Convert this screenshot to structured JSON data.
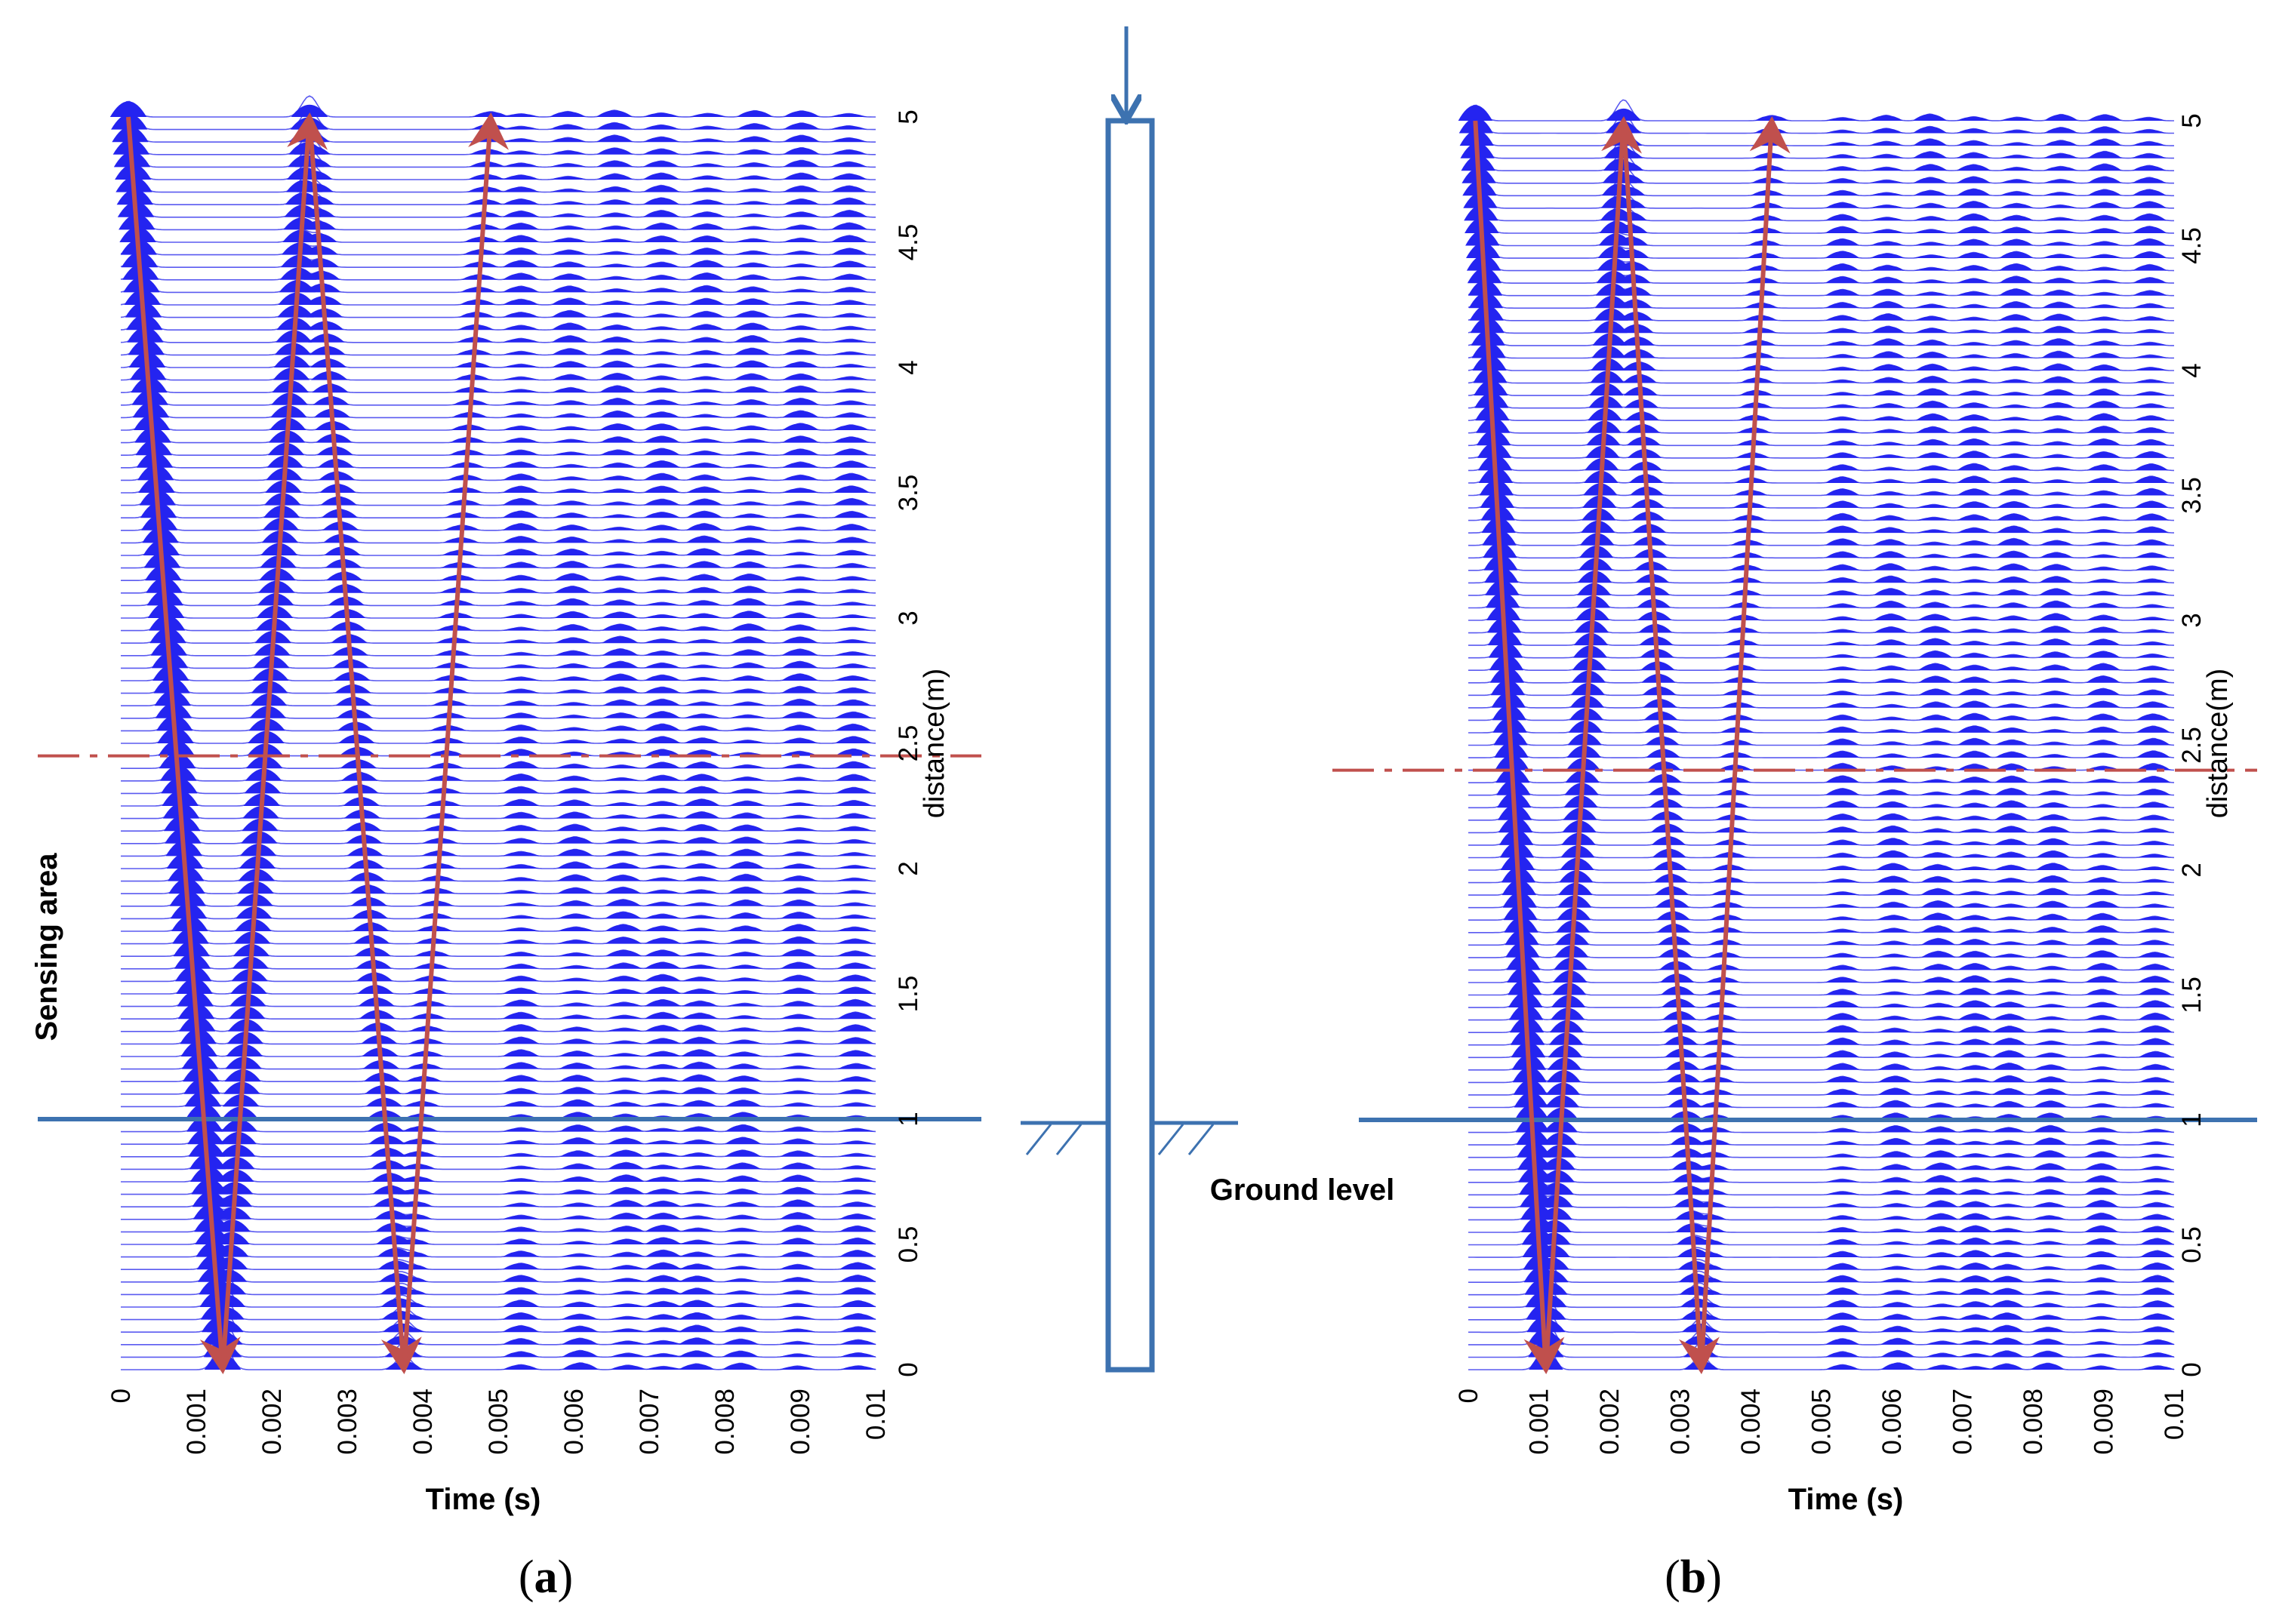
{
  "chart_data": [
    {
      "type": "line",
      "panel": "a",
      "panel_label": "a",
      "title": "",
      "xlabel": "Time (s)",
      "ylabel": "distance(m)",
      "xlim": [
        0,
        0.01
      ],
      "ylim": [
        0,
        5
      ],
      "x_ticks": [
        "0",
        "0.001",
        "0.002",
        "0.003",
        "0.004",
        "0.005",
        "0.006",
        "0.007",
        "0.008",
        "0.009",
        "0.01"
      ],
      "y_ticks": [
        "0",
        "0.5",
        "1",
        "1.5",
        "2",
        "2.5",
        "3",
        "3.5",
        "4",
        "4.5",
        "5"
      ],
      "series_description": "wiggle traces, one per 0.05 m of distance",
      "ground_level_m": 1.0,
      "interface_m": 2.45,
      "wave_path": [
        [
          0.0001,
          5.0
        ],
        [
          0.00135,
          0.0
        ],
        [
          0.0025,
          5.0
        ],
        [
          0.00375,
          0.0
        ],
        [
          0.0049,
          5.0
        ]
      ],
      "sensing_area_label": "Sensing area"
    },
    {
      "type": "line",
      "panel": "b",
      "panel_label": "b",
      "title": "",
      "xlabel": "Time (s)",
      "ylabel": "distance(m)",
      "xlim": [
        0,
        0.01
      ],
      "ylim": [
        0,
        5
      ],
      "x_ticks": [
        "0",
        "0.001",
        "0.002",
        "0.003",
        "0.004",
        "0.005",
        "0.006",
        "0.007",
        "0.008",
        "0.009",
        "0.01"
      ],
      "y_ticks": [
        "0",
        "0.5",
        "1",
        "1.5",
        "2",
        "2.5",
        "3",
        "3.5",
        "4",
        "4.5",
        "5"
      ],
      "series_description": "wiggle traces, one per 0.05 m of distance",
      "ground_level_m": 1.0,
      "interface_m": 2.4,
      "wave_path": [
        [
          0.0001,
          5.0
        ],
        [
          0.0011,
          0.0
        ],
        [
          0.0022,
          5.0
        ],
        [
          0.0033,
          0.0
        ],
        [
          0.0043,
          5.0
        ]
      ]
    }
  ],
  "pile": {
    "ground_label": "Ground level"
  },
  "colors": {
    "trace": "#2424f0",
    "trace_line": "#5a5af0",
    "arrow": "#c0504d",
    "ground": "#3d72b0",
    "pile": "#3d72b0"
  }
}
